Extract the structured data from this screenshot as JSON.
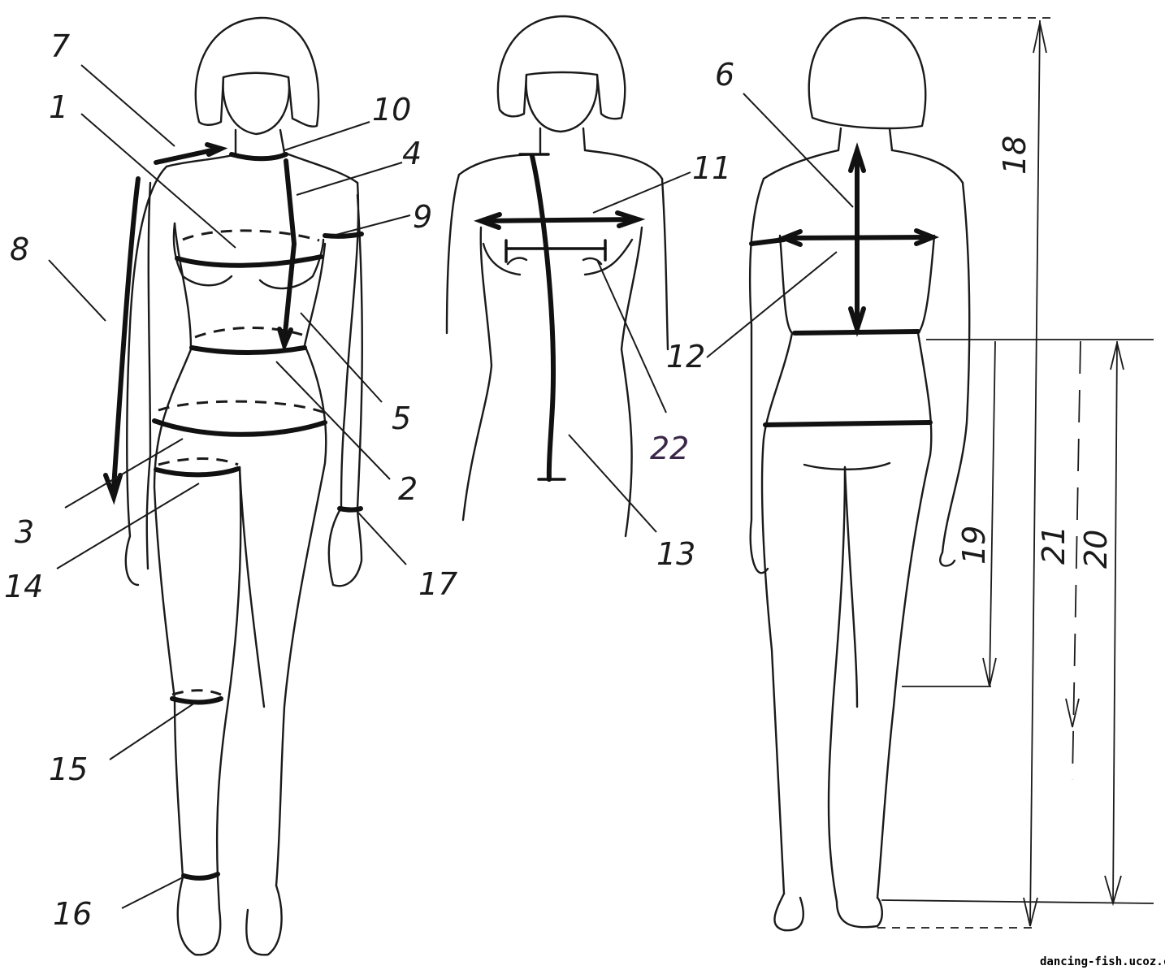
{
  "labels": {
    "m1": "1",
    "m2": "2",
    "m3": "3",
    "m4": "4",
    "m5": "5",
    "m6": "6",
    "m7": "7",
    "m8": "8",
    "m9": "9",
    "m10": "10",
    "m11": "11",
    "m12": "12",
    "m13": "13",
    "m14": "14",
    "m15": "15",
    "m16": "16",
    "m17": "17",
    "m18": "18",
    "m19": "19",
    "m20": "20",
    "m21": "21",
    "m22": "22"
  },
  "watermark": "dancing-fish.ucoz.com",
  "colors": {
    "ink": "#1a1a1a",
    "label_22": "#3b2748"
  }
}
